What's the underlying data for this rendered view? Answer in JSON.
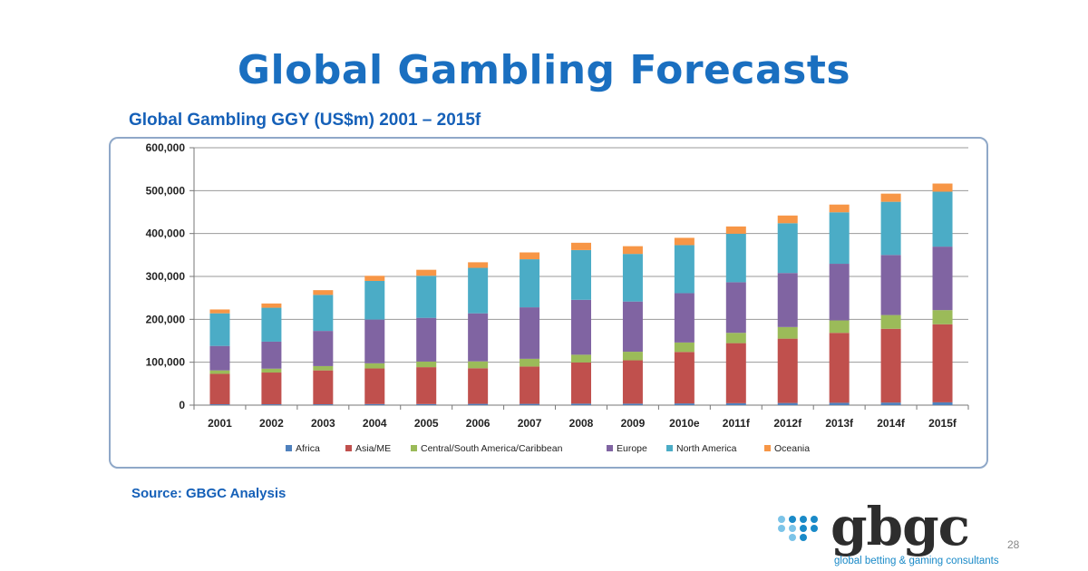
{
  "slide": {
    "title": "Global Gambling Forecasts",
    "source": "Source: GBGC Analysis",
    "page_number": "28"
  },
  "logo": {
    "wordmark": "gbgc",
    "tagline": "global betting & gaming consultants",
    "colors": [
      "#1a8ac8",
      "#7cc4e8"
    ]
  },
  "chart_data": {
    "type": "bar",
    "stacked": true,
    "title": "Global Gambling GGY (US$m) 2001 – 2015f",
    "xlabel": "",
    "ylabel": "",
    "ylim": [
      0,
      600000
    ],
    "yticks": [
      0,
      100000,
      200000,
      300000,
      400000,
      500000,
      600000
    ],
    "ytick_labels": [
      "0",
      "100,000",
      "200,000",
      "300,000",
      "400,000",
      "500,000",
      "600,000"
    ],
    "grid": true,
    "legend_position": "bottom",
    "categories": [
      "2001",
      "2002",
      "2003",
      "2004",
      "2005",
      "2006",
      "2007",
      "2008",
      "2009",
      "2010e",
      "2011f",
      "2012f",
      "2013f",
      "2014f",
      "2015f"
    ],
    "series": [
      {
        "name": "Africa",
        "color": "#4f81bd",
        "values": [
          2000,
          2000,
          2000,
          2500,
          2500,
          3000,
          3000,
          3500,
          3500,
          4000,
          4500,
          5000,
          5500,
          6000,
          6500
        ]
      },
      {
        "name": "Asia/ME",
        "color": "#c0504d",
        "values": [
          71000,
          74000,
          79000,
          83000,
          86000,
          83000,
          87000,
          96000,
          101000,
          120000,
          140000,
          150000,
          163000,
          172000,
          182000
        ]
      },
      {
        "name": "Central/South America/Caribbean",
        "color": "#9bbb59",
        "values": [
          8000,
          9000,
          10000,
          12000,
          13000,
          16000,
          18000,
          18000,
          20000,
          22000,
          24000,
          27000,
          29000,
          32000,
          33000
        ]
      },
      {
        "name": "Europe",
        "color": "#8064a2",
        "values": [
          57000,
          63000,
          82000,
          102000,
          102000,
          112000,
          120000,
          128000,
          117000,
          115000,
          118000,
          126000,
          132000,
          140000,
          148000
        ]
      },
      {
        "name": "North America",
        "color": "#4bacc6",
        "values": [
          76000,
          79000,
          84000,
          90000,
          98000,
          106000,
          112000,
          116000,
          111000,
          112000,
          113000,
          116000,
          120000,
          124000,
          128000
        ]
      },
      {
        "name": "Oceania",
        "color": "#f79646",
        "values": [
          9000,
          10000,
          11000,
          12000,
          14000,
          13000,
          16000,
          17000,
          18000,
          17000,
          17000,
          18000,
          18000,
          19000,
          19000
        ]
      }
    ]
  }
}
